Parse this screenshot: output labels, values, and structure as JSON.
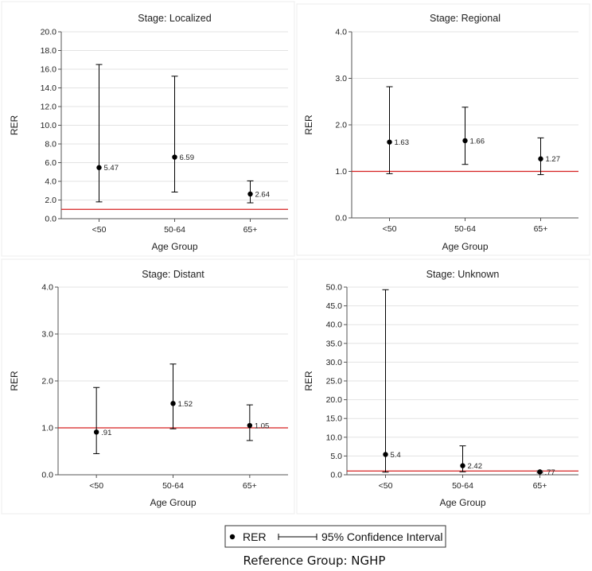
{
  "chart_data": [
    {
      "type": "scatter",
      "title": "Stage: Localized",
      "xlabel": "Age Group",
      "ylabel": "RER",
      "categories": [
        "<50",
        "50-64",
        "65+"
      ],
      "values": [
        5.47,
        6.59,
        2.64
      ],
      "value_labels": [
        "5.47",
        "6.59",
        "2.64"
      ],
      "ci_lower": [
        1.8,
        2.85,
        1.7
      ],
      "ci_upper": [
        16.5,
        15.25,
        4.05
      ],
      "ylim": [
        0,
        20
      ],
      "yticks": [
        "0.0",
        "2.0",
        "4.0",
        "6.0",
        "8.0",
        "10.0",
        "12.0",
        "14.0",
        "16.0",
        "18.0",
        "20.0"
      ],
      "reference_line": 1.0,
      "grid": true
    },
    {
      "type": "scatter",
      "title": "Stage: Regional",
      "xlabel": "Age Group",
      "ylabel": "RER",
      "categories": [
        "<50",
        "50-64",
        "65+"
      ],
      "values": [
        1.63,
        1.66,
        1.27
      ],
      "value_labels": [
        "1.63",
        "1.66",
        "1.27"
      ],
      "ci_lower": [
        0.95,
        1.15,
        0.93
      ],
      "ci_upper": [
        2.82,
        2.38,
        1.72
      ],
      "ylim": [
        0,
        4
      ],
      "yticks": [
        "0.0",
        "1.0",
        "2.0",
        "3.0",
        "4.0"
      ],
      "reference_line": 1.0,
      "grid": true
    },
    {
      "type": "scatter",
      "title": "Stage: Distant",
      "xlabel": "Age Group",
      "ylabel": "RER",
      "categories": [
        "<50",
        "50-64",
        "65+"
      ],
      "values": [
        0.91,
        1.52,
        1.05
      ],
      "value_labels": [
        ".91",
        "1.52",
        "1.05"
      ],
      "ci_lower": [
        0.45,
        0.98,
        0.73
      ],
      "ci_upper": [
        1.86,
        2.36,
        1.49
      ],
      "ylim": [
        0,
        4
      ],
      "yticks": [
        "0.0",
        "1.0",
        "2.0",
        "3.0",
        "4.0"
      ],
      "reference_line": 1.0,
      "grid": true
    },
    {
      "type": "scatter",
      "title": "Stage: Unknown",
      "xlabel": "Age Group",
      "ylabel": "RER",
      "categories": [
        "<50",
        "50-64",
        "65+"
      ],
      "values": [
        5.4,
        2.42,
        0.77
      ],
      "value_labels": [
        "5.4",
        "2.42",
        ".77"
      ],
      "ci_lower": [
        0.7,
        0.8,
        0.5
      ],
      "ci_upper": [
        49.3,
        7.7,
        1.0
      ],
      "ylim": [
        0,
        50
      ],
      "yticks": [
        "0.0",
        "5.0",
        "10.0",
        "15.0",
        "20.0",
        "25.0",
        "30.0",
        "35.0",
        "40.0",
        "45.0",
        "50.0"
      ],
      "reference_line": 1.0,
      "grid": true
    }
  ],
  "legend": {
    "point_label": "RER",
    "interval_label": "95% Confidence Interval",
    "placement": "bottom-center"
  },
  "footer": "Reference Group: NGHP",
  "colors": {
    "reference_line": "#d62020",
    "point": "#000000",
    "grid": "#e3e3e3",
    "axis": "#555555"
  }
}
